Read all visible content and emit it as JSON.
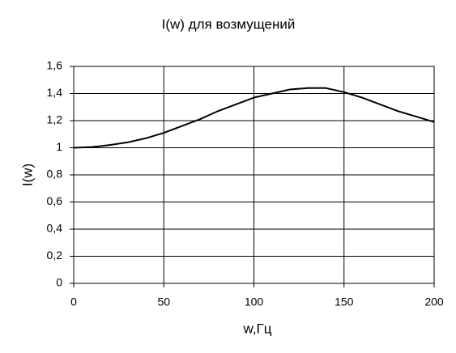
{
  "chart_data": {
    "type": "line",
    "title": "I(w) для возмущений",
    "xlabel": "w,Гц",
    "ylabel": "I(w)",
    "x": [
      0,
      10,
      20,
      30,
      40,
      50,
      60,
      70,
      80,
      90,
      100,
      110,
      120,
      130,
      140,
      150,
      160,
      170,
      180,
      190,
      200
    ],
    "series": [
      {
        "name": "I(w)",
        "color": "#000000",
        "values": [
          1.0,
          1.005,
          1.02,
          1.04,
          1.07,
          1.11,
          1.16,
          1.21,
          1.27,
          1.32,
          1.37,
          1.4,
          1.43,
          1.44,
          1.44,
          1.41,
          1.37,
          1.32,
          1.27,
          1.23,
          1.19
        ]
      }
    ],
    "xlim": [
      0,
      200
    ],
    "xticks": [
      0,
      50,
      100,
      150,
      200
    ],
    "ylim": [
      0,
      1.6
    ],
    "yticks": [
      0,
      {
        "value": 0.2,
        "label": "0,2"
      },
      {
        "value": 0.4,
        "label": "0,4"
      },
      {
        "value": 0.6,
        "label": "0,6"
      },
      {
        "value": 0.8,
        "label": "0,8"
      },
      1,
      {
        "value": 1.2,
        "label": "1,2"
      },
      {
        "value": 1.4,
        "label": "1,4"
      },
      {
        "value": 1.6,
        "label": "1,6"
      }
    ],
    "grid": true
  }
}
